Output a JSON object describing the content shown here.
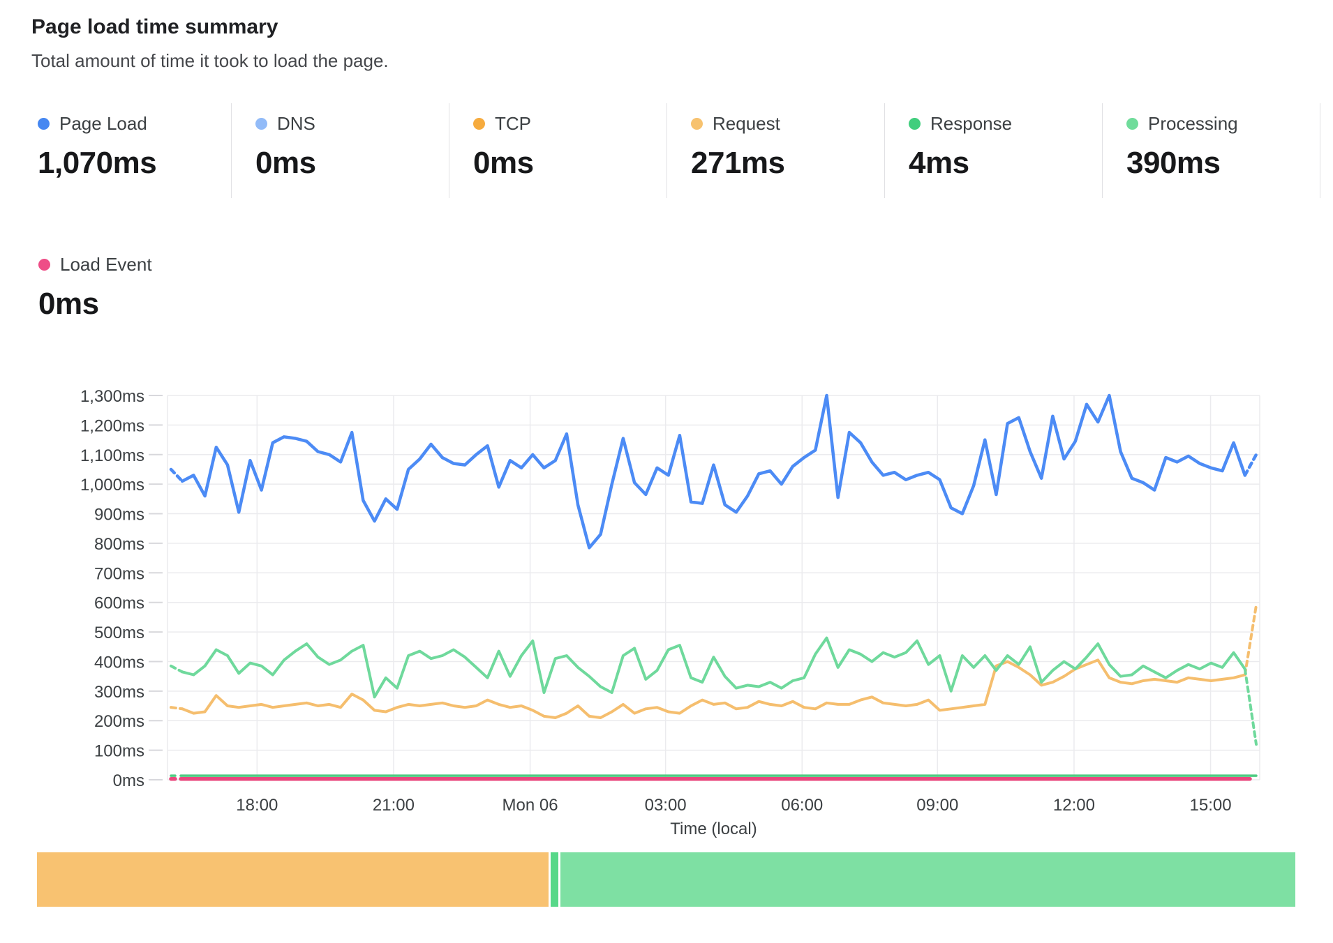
{
  "header": {
    "title": "Page load time summary",
    "subtitle": "Total amount of time it took to load the page."
  },
  "metrics": [
    {
      "label": "Page Load",
      "value": "1,070ms",
      "color": "#4687F1"
    },
    {
      "label": "DNS",
      "value": "0ms",
      "color": "#92BBF8"
    },
    {
      "label": "TCP",
      "value": "0ms",
      "color": "#F6AB3E"
    },
    {
      "label": "Request",
      "value": "271ms",
      "color": "#F7C26F"
    },
    {
      "label": "Response",
      "value": "4ms",
      "color": "#40CE7D"
    },
    {
      "label": "Processing",
      "value": "390ms",
      "color": "#70DC9B"
    },
    {
      "label": "Load Event",
      "value": "0ms",
      "color": "#EE4D87"
    }
  ],
  "chart_data": {
    "type": "line",
    "title": "Page load time summary",
    "xlabel": "Time (local)",
    "ylabel": "",
    "unit": "ms",
    "ylim": [
      0,
      1300
    ],
    "grid": true,
    "edge_segments": "dashed",
    "y_tick_labels": [
      "0ms",
      "100ms",
      "200ms",
      "300ms",
      "400ms",
      "500ms",
      "600ms",
      "700ms",
      "800ms",
      "900ms",
      "1,000ms",
      "1,100ms",
      "1,200ms",
      "1,300ms"
    ],
    "x_ticks": [
      {
        "label": "18:00",
        "pos": 0.082
      },
      {
        "label": "21:00",
        "pos": 0.207
      },
      {
        "label": "Mon 06",
        "pos": 0.332
      },
      {
        "label": "03:00",
        "pos": 0.456
      },
      {
        "label": "06:00",
        "pos": 0.581
      },
      {
        "label": "09:00",
        "pos": 0.705
      },
      {
        "label": "12:00",
        "pos": 0.83
      },
      {
        "label": "15:00",
        "pos": 0.955
      }
    ],
    "series": [
      {
        "name": "Page Load",
        "color": "#4C8BF5",
        "line_width": 4.5,
        "values": [
          1050,
          1010,
          1030,
          960,
          1125,
          1065,
          905,
          1080,
          980,
          1140,
          1160,
          1155,
          1145,
          1110,
          1100,
          1075,
          1175,
          945,
          875,
          950,
          915,
          1050,
          1085,
          1135,
          1090,
          1070,
          1065,
          1100,
          1130,
          990,
          1080,
          1055,
          1100,
          1055,
          1080,
          1170,
          930,
          785,
          830,
          1000,
          1155,
          1005,
          965,
          1055,
          1030,
          1165,
          940,
          935,
          1065,
          930,
          905,
          960,
          1035,
          1045,
          1000,
          1060,
          1090,
          1115,
          1300,
          955,
          1175,
          1140,
          1075,
          1030,
          1040,
          1015,
          1030,
          1040,
          1015,
          920,
          900,
          995,
          1150,
          965,
          1205,
          1225,
          1110,
          1020,
          1230,
          1085,
          1145,
          1270,
          1210,
          1300,
          1110,
          1020,
          1005,
          980,
          1090,
          1075,
          1095,
          1070,
          1055,
          1045,
          1140,
          1030,
          1100
        ]
      },
      {
        "name": "Processing",
        "color": "#6FD99C",
        "line_width": 4,
        "values": [
          385,
          365,
          355,
          385,
          440,
          420,
          360,
          395,
          385,
          355,
          405,
          435,
          460,
          415,
          390,
          405,
          435,
          455,
          280,
          345,
          310,
          420,
          435,
          410,
          420,
          440,
          415,
          380,
          345,
          435,
          350,
          420,
          470,
          295,
          410,
          420,
          380,
          350,
          315,
          295,
          420,
          445,
          340,
          370,
          440,
          455,
          345,
          330,
          415,
          350,
          310,
          320,
          315,
          330,
          310,
          335,
          345,
          425,
          480,
          380,
          440,
          425,
          400,
          430,
          415,
          430,
          470,
          390,
          420,
          300,
          420,
          380,
          420,
          370,
          420,
          390,
          450,
          330,
          370,
          400,
          375,
          415,
          460,
          390,
          350,
          355,
          385,
          365,
          345,
          370,
          390,
          375,
          395,
          380,
          430,
          375,
          120
        ]
      },
      {
        "name": "Request",
        "color": "#F5BE6E",
        "line_width": 4,
        "values": [
          245,
          240,
          225,
          230,
          285,
          250,
          245,
          250,
          255,
          245,
          250,
          255,
          260,
          250,
          255,
          245,
          290,
          270,
          235,
          230,
          245,
          255,
          250,
          255,
          260,
          250,
          245,
          250,
          270,
          255,
          245,
          250,
          235,
          215,
          210,
          225,
          250,
          215,
          210,
          230,
          255,
          225,
          240,
          245,
          230,
          225,
          250,
          270,
          255,
          260,
          240,
          245,
          265,
          255,
          250,
          265,
          245,
          240,
          260,
          255,
          255,
          270,
          280,
          260,
          255,
          250,
          255,
          270,
          235,
          240,
          245,
          250,
          255,
          385,
          400,
          380,
          355,
          320,
          330,
          350,
          375,
          390,
          405,
          345,
          330,
          325,
          335,
          340,
          335,
          330,
          345,
          340,
          335,
          340,
          345,
          355,
          590
        ]
      },
      {
        "name": "Response",
        "color": "#4FCC82",
        "line_width": 3.5,
        "flat_value": 14
      },
      {
        "name": "Load Event",
        "color": "#E8487E",
        "line_width": 5.5,
        "flat_value": 3
      },
      {
        "name": "DNS",
        "color": "#92BBF8",
        "flat_value": 0,
        "hidden": true
      },
      {
        "name": "TCP",
        "color": "#F6AB3E",
        "flat_value": 0,
        "hidden": true
      }
    ],
    "breakdown_bar": {
      "type": "stacked-bar",
      "segments": [
        {
          "name": "Request",
          "color": "#F8C271",
          "percent": 40.8
        },
        {
          "name": "Response",
          "color": "#57D889",
          "percent": 0.6
        },
        {
          "name": "Processing",
          "color": "#7EE0A3",
          "percent": 58.6
        }
      ]
    }
  }
}
